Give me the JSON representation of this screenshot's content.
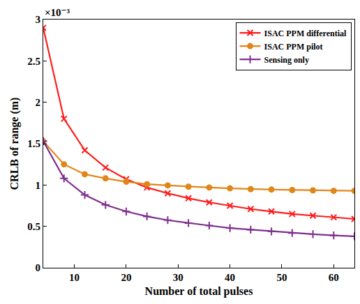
{
  "chart_data": {
    "type": "line",
    "x_label": "Number of total pulses",
    "y_label": "CRLB of range (m)",
    "y_exponent": "×10⁻³",
    "x": [
      4,
      8,
      12,
      16,
      20,
      24,
      28,
      32,
      36,
      40,
      44,
      48,
      52,
      56,
      60,
      64
    ],
    "series": [
      {
        "name": "ISAC PPM differential",
        "color": "#ff1a1a",
        "marker": "x",
        "line_style": "solid",
        "values": [
          2.9,
          1.8,
          1.42,
          1.21,
          1.07,
          0.97,
          0.9,
          0.84,
          0.79,
          0.75,
          0.71,
          0.68,
          0.65,
          0.63,
          0.61,
          0.59
        ]
      },
      {
        "name": "ISAC PPM pilot",
        "color": "#e0861a",
        "marker": "circle",
        "line_style": "solid",
        "values": [
          1.53,
          1.25,
          1.13,
          1.08,
          1.04,
          1.01,
          0.995,
          0.98,
          0.97,
          0.96,
          0.95,
          0.945,
          0.94,
          0.935,
          0.93,
          0.93
        ]
      },
      {
        "name": "Sensing only",
        "color": "#7e2f8e",
        "marker": "cross",
        "line_style": "solid",
        "values": [
          1.53,
          1.08,
          0.88,
          0.76,
          0.68,
          0.62,
          0.575,
          0.54,
          0.51,
          0.48,
          0.46,
          0.44,
          0.42,
          0.405,
          0.39,
          0.38
        ]
      }
    ],
    "xlim": [
      4,
      64
    ],
    "ylim": [
      0,
      3
    ],
    "xticks": [
      10,
      20,
      30,
      40,
      50,
      60
    ],
    "yticks": [
      0,
      0.5,
      1,
      1.5,
      2,
      2.5,
      3
    ],
    "grid": false,
    "legend": "upper right"
  }
}
